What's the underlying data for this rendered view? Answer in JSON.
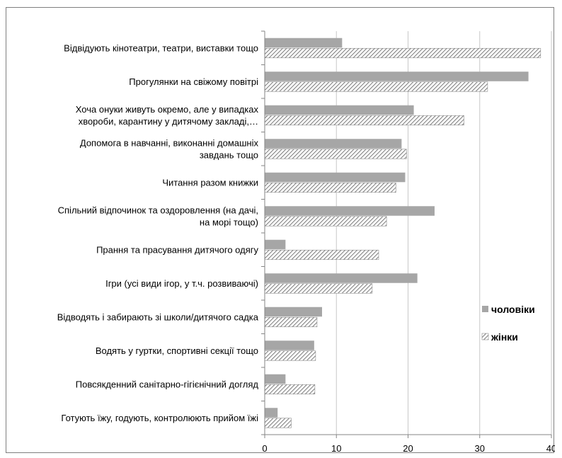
{
  "chart_data": {
    "type": "bar",
    "orientation": "horizontal",
    "categories": [
      [
        "Відвідують кінотеатри, театри, виставки тощо"
      ],
      [
        "Прогулянки на свіжому повітрі"
      ],
      [
        "Хоча онуки живуть окремо, але у випадках",
        "хвороби, карантину у дитячому закладі,…"
      ],
      [
        "Допомога в навчанні, виконанні домашніх",
        "завдань тощо"
      ],
      [
        "Читання разом книжки"
      ],
      [
        "Спільний відпочинок та оздоровлення (на дачі,",
        "на морі тощо)"
      ],
      [
        "Прання та прасування дитячого одягу"
      ],
      [
        "Ігри (усі види ігор, у т.ч. розвиваючі)"
      ],
      [
        "Відводять і забирають зі школи/дитячого садка"
      ],
      [
        "Водять у гуртки, спортивні секції тощо"
      ],
      [
        "Повсякденний санітарно-гігієнічний догляд"
      ],
      [
        "Готують їжу, годують, контролюють прийом їжі"
      ]
    ],
    "series": [
      {
        "name": "чоловіки",
        "color": "#a6a6a6",
        "pattern": "solid",
        "values": [
          10.8,
          36.8,
          20.8,
          19.1,
          19.6,
          23.7,
          2.9,
          21.3,
          8.0,
          6.9,
          2.9,
          1.8
        ]
      },
      {
        "name": "жінки",
        "color": "#a6a6a6",
        "pattern": "diagonal-hatch",
        "values": [
          38.5,
          31.1,
          27.8,
          19.8,
          18.3,
          17.0,
          15.9,
          15.0,
          7.3,
          7.1,
          7.0,
          3.7
        ]
      }
    ],
    "xlim": [
      0,
      40
    ],
    "xticks": [
      0,
      10,
      20,
      30,
      40
    ],
    "grid": true,
    "legend_position": "right"
  }
}
